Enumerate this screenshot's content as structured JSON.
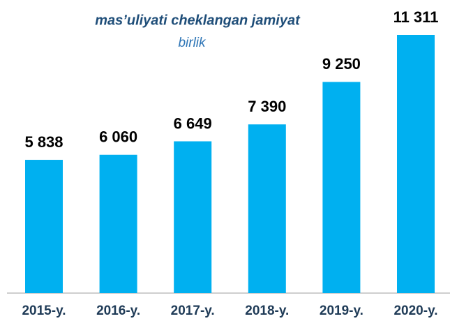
{
  "chart_data": {
    "type": "bar",
    "title": "mas’uliyati cheklangan jamiyat",
    "subtitle": "birlik",
    "categories": [
      "2015-y.",
      "2016-y.",
      "2017-y.",
      "2018-y.",
      "2019-y.",
      "2020-y."
    ],
    "values": [
      5838,
      6060,
      6649,
      7390,
      9250,
      11311
    ],
    "value_labels": [
      "5 838",
      "6 060",
      "6 649",
      "7 390",
      "9 250",
      "11 311"
    ],
    "color": "#00b0f0"
  }
}
